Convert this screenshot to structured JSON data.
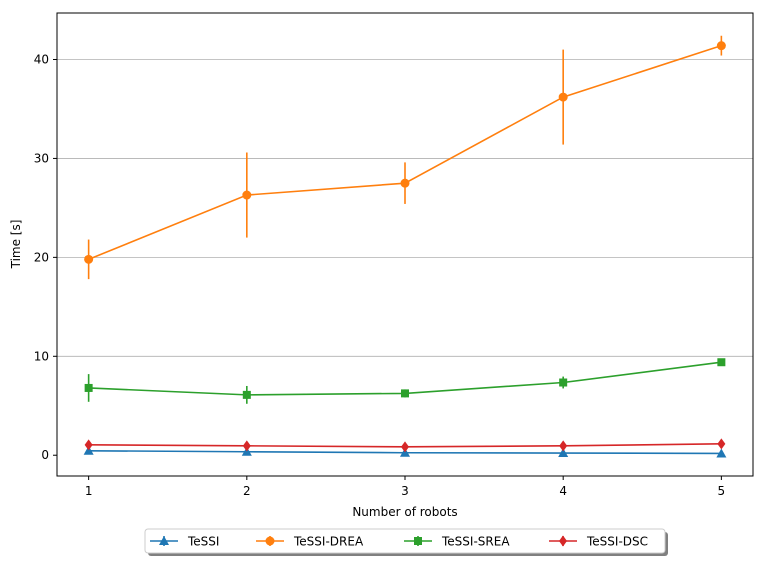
{
  "chart_data": {
    "type": "line",
    "title": "",
    "xlabel": "Number of robots",
    "ylabel": "Time [s]",
    "x": [
      1,
      2,
      3,
      4,
      5
    ],
    "xlim": [
      0.8,
      5.2
    ],
    "ylim": [
      -2.1,
      44.7
    ],
    "xticks": [
      "1",
      "2",
      "3",
      "4",
      "5"
    ],
    "yticks": [
      0,
      10,
      20,
      30,
      40
    ],
    "grid": "horizontal",
    "legend_placement": "bottom-center",
    "series": [
      {
        "name": "TeSSI",
        "color": "#1f77b4",
        "marker": "triangle",
        "values": [
          0.45,
          0.35,
          0.25,
          0.22,
          0.18
        ],
        "errors": [
          0.2,
          0.15,
          0.1,
          0.1,
          0.1
        ]
      },
      {
        "name": "TeSSI-DREA",
        "color": "#ff7f0e",
        "marker": "circle",
        "values": [
          19.8,
          26.3,
          27.5,
          36.2,
          41.4
        ],
        "errors": [
          2.0,
          4.3,
          2.1,
          4.8,
          1.0
        ]
      },
      {
        "name": "TeSSI-SREA",
        "color": "#2ca02c",
        "marker": "square",
        "values": [
          6.8,
          6.1,
          6.25,
          7.35,
          9.4
        ],
        "errors": [
          1.4,
          0.9,
          0.4,
          0.6,
          0.3
        ]
      },
      {
        "name": "TeSSI-DSC",
        "color": "#d62728",
        "marker": "diamond",
        "values": [
          1.05,
          0.95,
          0.85,
          0.95,
          1.15
        ],
        "errors": [
          0.2,
          0.15,
          0.15,
          0.15,
          0.2
        ]
      }
    ]
  }
}
